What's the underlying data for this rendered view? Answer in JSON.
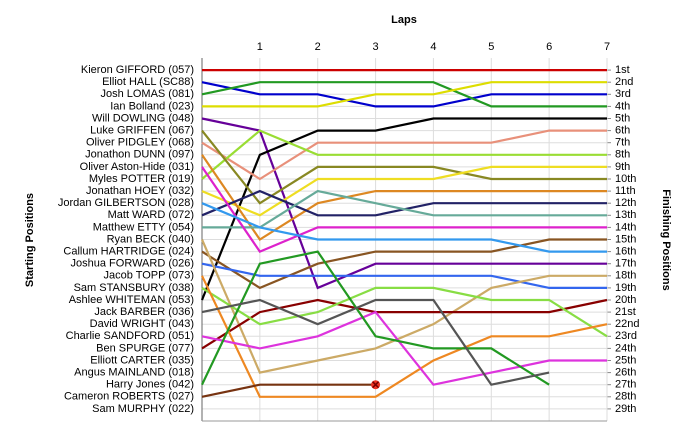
{
  "chart_data": {
    "type": "line",
    "title": "Laps",
    "ylabel": "Starting Positions",
    "y2label": "Finishing Positions",
    "x": [
      0,
      1,
      2,
      3,
      4,
      5,
      6,
      7
    ],
    "xlim": [
      0,
      7
    ],
    "xticks": [
      1,
      2,
      3,
      4,
      5,
      6,
      7
    ],
    "ylim": [
      30,
      0
    ],
    "grid": true,
    "yticks": [
      {
        "value": 1,
        "label": "Kieron GIFFORD (057)"
      },
      {
        "value": 2,
        "label": "Elliot HALL (SC88)"
      },
      {
        "value": 3,
        "label": "Josh LOMAS (081)"
      },
      {
        "value": 4,
        "label": "Ian Bolland (023)"
      },
      {
        "value": 5,
        "label": "Will DOWLING (048)"
      },
      {
        "value": 6,
        "label": "Luke GRIFFEN (067)"
      },
      {
        "value": 7,
        "label": "Oliver PIDGLEY (068)"
      },
      {
        "value": 8,
        "label": "Jonathon DUNN (097)"
      },
      {
        "value": 9,
        "label": "Oliver Aston-Hide (031)"
      },
      {
        "value": 10,
        "label": "Myles POTTER (019)"
      },
      {
        "value": 11,
        "label": "Jonathan HOEY (032)"
      },
      {
        "value": 12,
        "label": "Jordan GILBERTSON (028)"
      },
      {
        "value": 13,
        "label": "Matt WARD (072)"
      },
      {
        "value": 14,
        "label": "Matthew ETTY (054)"
      },
      {
        "value": 15,
        "label": "Ryan BECK (040)"
      },
      {
        "value": 16,
        "label": "Callum HARTRIDGE (024)"
      },
      {
        "value": 17,
        "label": "Joshua FORWARD (026)"
      },
      {
        "value": 18,
        "label": "Jacob TOPP (073)"
      },
      {
        "value": 19,
        "label": "Sam STANSBURY (038)"
      },
      {
        "value": 20,
        "label": "Ashlee WHITEMAN (053)"
      },
      {
        "value": 21,
        "label": "Jack BARBER (036)"
      },
      {
        "value": 22,
        "label": "David WRIGHT (043)"
      },
      {
        "value": 23,
        "label": "Charlie SANDFORD (051)"
      },
      {
        "value": 24,
        "label": "Ben SPURGE (077)"
      },
      {
        "value": 25,
        "label": "Elliott CARTER (035)"
      },
      {
        "value": 26,
        "label": "Angus MAINLAND (018)"
      },
      {
        "value": 27,
        "label": "Harry Jones (042)"
      },
      {
        "value": 28,
        "label": "Cameron ROBERTS (027)"
      },
      {
        "value": 29,
        "label": "Sam MURPHY (022)"
      }
    ],
    "y2ticks": [
      {
        "value": 1,
        "label": "1st"
      },
      {
        "value": 2,
        "label": "2nd"
      },
      {
        "value": 3,
        "label": "3rd"
      },
      {
        "value": 4,
        "label": "4th"
      },
      {
        "value": 5,
        "label": "5th"
      },
      {
        "value": 6,
        "label": "6th"
      },
      {
        "value": 7,
        "label": "7th"
      },
      {
        "value": 8,
        "label": "8th"
      },
      {
        "value": 9,
        "label": "9th"
      },
      {
        "value": 10,
        "label": "10th"
      },
      {
        "value": 11,
        "label": "11th"
      },
      {
        "value": 12,
        "label": "12th"
      },
      {
        "value": 13,
        "label": "13th"
      },
      {
        "value": 14,
        "label": "14th"
      },
      {
        "value": 15,
        "label": "15th"
      },
      {
        "value": 16,
        "label": "16th"
      },
      {
        "value": 17,
        "label": "17th"
      },
      {
        "value": 18,
        "label": "18th"
      },
      {
        "value": 19,
        "label": "19th"
      },
      {
        "value": 20,
        "label": "20th"
      },
      {
        "value": 21,
        "label": "21st"
      },
      {
        "value": 22,
        "label": "22nd"
      },
      {
        "value": 23,
        "label": "23rd"
      },
      {
        "value": 24,
        "label": "24th"
      },
      {
        "value": 25,
        "label": "25th"
      },
      {
        "value": 26,
        "label": "26th"
      },
      {
        "value": 27,
        "label": "27th"
      },
      {
        "value": 28,
        "label": "28th"
      },
      {
        "value": 29,
        "label": "29th"
      }
    ],
    "series": [
      {
        "color": "#cc0000",
        "values": [
          1,
          1,
          1,
          1,
          1,
          1,
          1,
          1
        ]
      },
      {
        "color": "#0000cc",
        "values": [
          2,
          3,
          3,
          4,
          4,
          3,
          3,
          3
        ]
      },
      {
        "color": "#229922",
        "values": [
          3,
          2,
          2,
          2,
          2,
          4,
          4,
          4
        ]
      },
      {
        "color": "#dddd00",
        "values": [
          4,
          4,
          4,
          3,
          3,
          2,
          2,
          2
        ]
      },
      {
        "color": "#660099",
        "values": [
          5,
          6,
          19,
          17,
          17,
          17,
          17,
          17
        ]
      },
      {
        "color": "#000000",
        "values": [
          20,
          8,
          6,
          6,
          5,
          5,
          5,
          5
        ]
      },
      {
        "color": "#e8907a",
        "values": [
          7,
          10,
          7,
          7,
          7,
          7,
          6,
          6
        ]
      },
      {
        "color": "#99dd33",
        "values": [
          10,
          6,
          8,
          8,
          8,
          8,
          8,
          8
        ]
      },
      {
        "color": "#888822",
        "values": [
          6,
          12,
          9,
          9,
          9,
          10,
          10,
          10
        ]
      },
      {
        "color": "#eedd22",
        "values": [
          11,
          13,
          10,
          10,
          10,
          9,
          9,
          9
        ]
      },
      {
        "color": "#dd8822",
        "values": [
          8,
          15,
          12,
          11,
          11,
          11,
          11,
          11
        ]
      },
      {
        "color": "#222266",
        "values": [
          13,
          11,
          13,
          13,
          12,
          12,
          12,
          12
        ]
      },
      {
        "color": "#66aa99",
        "values": [
          14,
          14,
          11,
          12,
          13,
          13,
          13,
          13
        ]
      },
      {
        "color": "#dd22cc",
        "values": [
          9,
          16,
          14,
          14,
          14,
          14,
          14,
          14
        ]
      },
      {
        "color": "#885522",
        "values": [
          16,
          19,
          17,
          16,
          16,
          16,
          15,
          15
        ]
      },
      {
        "color": "#3399ee",
        "values": [
          12,
          14,
          15,
          15,
          15,
          15,
          16,
          16
        ]
      },
      {
        "color": "#3366ee",
        "values": [
          17,
          18,
          18,
          18,
          18,
          18,
          19,
          19
        ]
      },
      {
        "color": "#ccaa66",
        "values": [
          15,
          26,
          25,
          24,
          22,
          19,
          18,
          18
        ]
      },
      {
        "color": "#880000",
        "values": [
          24,
          21,
          20,
          21,
          21,
          21,
          21,
          20
        ]
      },
      {
        "color": "#88dd44",
        "values": [
          19,
          22,
          21,
          19,
          19,
          20,
          20,
          23
        ]
      },
      {
        "color": "#ee8822",
        "values": [
          18,
          28,
          28,
          28,
          25,
          23,
          23,
          22
        ]
      },
      {
        "color": "#dd33dd",
        "values": [
          23,
          24,
          23,
          21,
          27,
          26,
          25,
          25
        ]
      },
      {
        "color": "#229922",
        "values": [
          27,
          17,
          16,
          23,
          24,
          24,
          27,
          null
        ]
      },
      {
        "color": "#555555",
        "values": [
          21,
          20,
          22,
          20,
          20,
          27,
          26,
          null
        ]
      },
      {
        "color": "#773311",
        "values": [
          28,
          27,
          27,
          27,
          null,
          null,
          null,
          null
        ],
        "end_marker": "x"
      }
    ]
  }
}
